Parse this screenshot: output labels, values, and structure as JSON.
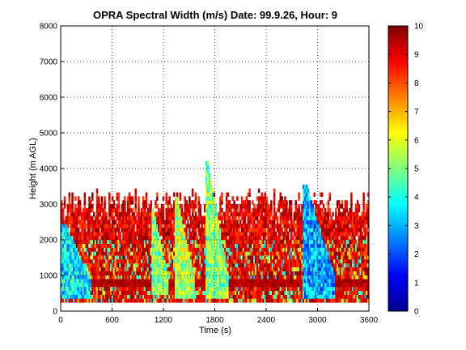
{
  "chart_data": {
    "type": "heatmap",
    "title": "OPRA Spectral Width (m/s)  Date: 99.9.26, Hour: 9",
    "xlabel": "Time (s)",
    "ylabel": "Height (m AGL)",
    "xlim": [
      0,
      3600
    ],
    "ylim": [
      0,
      8000
    ],
    "x_ticks": [
      0,
      600,
      1200,
      1800,
      2400,
      3000,
      3600
    ],
    "x_tick_labels": [
      "0",
      "600",
      "1200",
      "1800",
      "2400",
      "3000",
      "3600"
    ],
    "y_ticks": [
      0,
      1000,
      2000,
      3000,
      4000,
      5000,
      6000,
      7000,
      8000
    ],
    "y_tick_labels": [
      "0",
      "1000",
      "2000",
      "3000",
      "4000",
      "5000",
      "6000",
      "7000",
      "8000"
    ],
    "grid": true,
    "colorbar": {
      "min": 0,
      "max": 10,
      "ticks": [
        0,
        1,
        2,
        3,
        4,
        5,
        6,
        7,
        8,
        9,
        10
      ],
      "tick_labels": [
        "0",
        "1",
        "2",
        "3",
        "4",
        "5",
        "6",
        "7",
        "8",
        "9",
        "10"
      ],
      "colormap": "jet"
    },
    "data_summary": {
      "background_value_range": [
        8,
        10
      ],
      "data_top_typical_m": 3000,
      "low_width_streaks": [
        {
          "time_start_s": 0,
          "time_end_s": 350,
          "height_bottom_m": 300,
          "height_top_m": 2400,
          "value": 3.5
        },
        {
          "time_start_s": 1050,
          "time_end_s": 1250,
          "height_bottom_m": 400,
          "height_top_m": 2800,
          "value": 5
        },
        {
          "time_start_s": 1320,
          "time_end_s": 1560,
          "height_bottom_m": 300,
          "height_top_m": 3200,
          "value": 5.5
        },
        {
          "time_start_s": 1680,
          "time_end_s": 1950,
          "height_bottom_m": 300,
          "height_top_m": 4200,
          "value": 5
        },
        {
          "time_start_s": 2820,
          "time_end_s": 3200,
          "height_bottom_m": 300,
          "height_top_m": 3500,
          "value": 3
        }
      ],
      "constant_band": {
        "height_bottom_m": 600,
        "height_top_m": 900,
        "value": 9.5
      }
    }
  }
}
